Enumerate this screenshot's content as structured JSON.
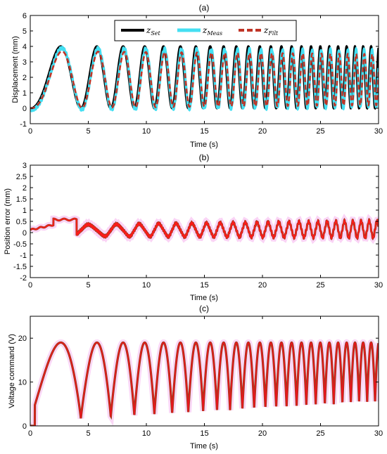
{
  "colors": {
    "set": "#000000",
    "meas": "#44dff2",
    "filt": "#c03426",
    "error": "#ff1a1a",
    "error_dark": "#9a3a1a",
    "voltage": "#e8151e",
    "voltage_dark": "#8a4a1a",
    "halo": "#f6b6ef"
  },
  "chart_data": [
    {
      "type": "line",
      "title": "(a)",
      "xlabel": "Time (s)",
      "ylabel": "Displacement (mm)",
      "xlim": [
        0,
        30
      ],
      "ylim": [
        -1,
        6
      ],
      "xticks": [
        "0",
        "5",
        "10",
        "15",
        "20",
        "25",
        "30"
      ],
      "yticks": [
        "-1",
        "0",
        "1",
        "2",
        "3",
        "4",
        "5",
        "6"
      ],
      "legend_position": "top-center",
      "series": [
        {
          "name": "z",
          "subscript": "Set",
          "amplitude_min_max": [
            0,
            4
          ],
          "first_peak_s": 3.8
        },
        {
          "name": "z",
          "subscript": "Meas",
          "amplitude_min_max": [
            -0.1,
            3.9
          ]
        },
        {
          "name": "z",
          "subscript": "Filt",
          "amplitude_min_max": [
            0,
            3.7
          ]
        }
      ],
      "signal": "chirp, frequency increasing from ~0.13 Hz to ~1.5 Hz over 0-30 s"
    },
    {
      "type": "line",
      "title": "(b)",
      "xlabel": "Time (s)",
      "ylabel": "Position error (mm)",
      "xlim": [
        0,
        30
      ],
      "ylim": [
        -2,
        3
      ],
      "xticks": [
        "0",
        "5",
        "10",
        "15",
        "20",
        "25",
        "30"
      ],
      "yticks": [
        "-2",
        "-1.5",
        "-1",
        "-0.5",
        "0",
        "0.5",
        "1",
        "1.5",
        "2",
        "2.5",
        "3"
      ],
      "series": [
        {
          "name": "",
          "plateau_s": [
            2,
            4
          ],
          "plateau_value": 0.58,
          "late_range": [
            -0.6,
            0.8
          ]
        }
      ]
    },
    {
      "type": "line",
      "title": "(c)",
      "xlabel": "Time (s)",
      "ylabel": "Voltage command (V)",
      "xlim": [
        0,
        30
      ],
      "ylim": [
        0,
        25
      ],
      "xticks": [
        "0",
        "5",
        "10",
        "15",
        "20",
        "25",
        "30"
      ],
      "yticks": [
        "0",
        "10",
        "20"
      ],
      "series": [
        {
          "name": "",
          "peak_value": 19,
          "trough_start": 1,
          "trough_end": 5.5
        }
      ]
    }
  ]
}
